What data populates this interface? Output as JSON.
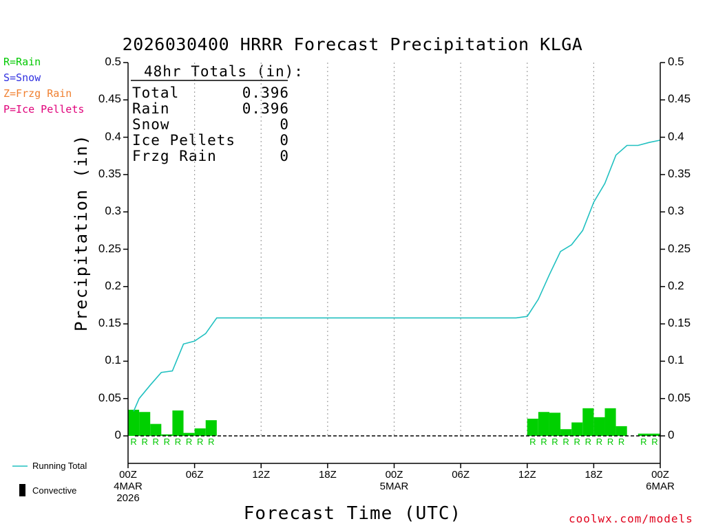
{
  "chart_data": {
    "type": "bar",
    "title": "2026030400 HRRR Forecast Precipitation KLGA",
    "xlabel": "Forecast Time (UTC)",
    "ylabel": "Precipitation (in)",
    "ylim": [
      0,
      0.5
    ],
    "xlim_hours": [
      0,
      48
    ],
    "y_ticks": [
      "0",
      "0.05",
      "0.1",
      "0.15",
      "0.2",
      "0.25",
      "0.3",
      "0.35",
      "0.4",
      "0.45",
      "0.5"
    ],
    "x_ticks": [
      {
        "hour": 0,
        "label": "00Z",
        "date": "4MAR",
        "year": "2026"
      },
      {
        "hour": 6,
        "label": "06Z",
        "date": "",
        "year": ""
      },
      {
        "hour": 12,
        "label": "12Z",
        "date": "",
        "year": ""
      },
      {
        "hour": 18,
        "label": "18Z",
        "date": "",
        "year": ""
      },
      {
        "hour": 24,
        "label": "00Z",
        "date": "5MAR",
        "year": ""
      },
      {
        "hour": 30,
        "label": "06Z",
        "date": "",
        "year": ""
      },
      {
        "hour": 36,
        "label": "12Z",
        "date": "",
        "year": ""
      },
      {
        "hour": 42,
        "label": "18Z",
        "date": "",
        "year": ""
      },
      {
        "hour": 48,
        "label": "00Z",
        "date": "6MAR",
        "year": ""
      }
    ],
    "hourly_precip": [
      {
        "hour": 1,
        "value": 0.035,
        "type": "R"
      },
      {
        "hour": 2,
        "value": 0.032,
        "type": "R"
      },
      {
        "hour": 3,
        "value": 0.016,
        "type": "R"
      },
      {
        "hour": 4,
        "value": 0.002,
        "type": "R"
      },
      {
        "hour": 5,
        "value": 0.034,
        "type": "R"
      },
      {
        "hour": 6,
        "value": 0.004,
        "type": "R"
      },
      {
        "hour": 7,
        "value": 0.01,
        "type": "R"
      },
      {
        "hour": 8,
        "value": 0.021,
        "type": "R"
      },
      {
        "hour": 37,
        "value": 0.023,
        "type": "R"
      },
      {
        "hour": 38,
        "value": 0.032,
        "type": "R"
      },
      {
        "hour": 39,
        "value": 0.031,
        "type": "R"
      },
      {
        "hour": 40,
        "value": 0.009,
        "type": "R"
      },
      {
        "hour": 41,
        "value": 0.018,
        "type": "R"
      },
      {
        "hour": 42,
        "value": 0.037,
        "type": "R"
      },
      {
        "hour": 43,
        "value": 0.025,
        "type": "R"
      },
      {
        "hour": 44,
        "value": 0.037,
        "type": "R"
      },
      {
        "hour": 45,
        "value": 0.013,
        "type": "R"
      },
      {
        "hour": 47,
        "value": 0.003,
        "type": "R"
      },
      {
        "hour": 48,
        "value": 0.003,
        "type": "R"
      }
    ],
    "running_total": {
      "name": "Running Total",
      "color": "#20c0c0",
      "points": [
        [
          0.5,
          0.033
        ],
        [
          1,
          0.05
        ],
        [
          2,
          0.068
        ],
        [
          3,
          0.085
        ],
        [
          4,
          0.087
        ],
        [
          5,
          0.123
        ],
        [
          6,
          0.127
        ],
        [
          7,
          0.137
        ],
        [
          8,
          0.158
        ],
        [
          9,
          0.158
        ],
        [
          35,
          0.158
        ],
        [
          36,
          0.16
        ],
        [
          37,
          0.183
        ],
        [
          38,
          0.216
        ],
        [
          39,
          0.247
        ],
        [
          40,
          0.256
        ],
        [
          41,
          0.275
        ],
        [
          42,
          0.313
        ],
        [
          43,
          0.338
        ],
        [
          44,
          0.376
        ],
        [
          45,
          0.389
        ],
        [
          46,
          0.389
        ],
        [
          47,
          0.393
        ],
        [
          48,
          0.396
        ]
      ]
    },
    "bar_color": "#00d000",
    "totals_box": {
      "heading": "48hr Totals (in):",
      "rows": [
        {
          "label": "Total",
          "value": "0.396"
        },
        {
          "label": "Rain",
          "value": "0.396"
        },
        {
          "label": "Snow",
          "value": "0"
        },
        {
          "label": "Ice Pellets",
          "value": "0"
        },
        {
          "label": "Frzg Rain",
          "value": "0"
        }
      ]
    },
    "ptype_legend": [
      {
        "text": "R=Rain",
        "color": "#00c800"
      },
      {
        "text": "S=Snow",
        "color": "#3030e0"
      },
      {
        "text": "Z=Frzg Rain",
        "color": "#f08030"
      },
      {
        "text": "P=Ice Pellets",
        "color": "#e0007a"
      }
    ],
    "series_legend": [
      {
        "text": "Running Total",
        "color": "#20c0c0"
      },
      {
        "text": "Convective",
        "color": "#000000"
      }
    ],
    "credit": "coolwx.com/models"
  }
}
